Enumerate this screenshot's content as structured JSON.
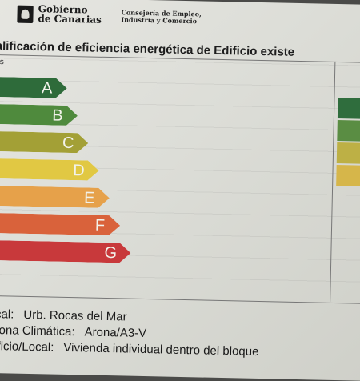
{
  "header": {
    "org_name": "Gobierno\nde Canarias",
    "dept_name": "Consejería de Empleo,\nIndustria y Comercio"
  },
  "title": "alificación de eficiencia energética de Edificio existe",
  "scale_note": "ás",
  "ratings": [
    {
      "letter": "A",
      "color": "#2e6b3a"
    },
    {
      "letter": "B",
      "color": "#4f8a3d"
    },
    {
      "letter": "C",
      "color": "#a3a036"
    },
    {
      "letter": "D",
      "color": "#e1c843"
    },
    {
      "letter": "E",
      "color": "#e6a14a"
    },
    {
      "letter": "F",
      "color": "#d9623b"
    },
    {
      "letter": "G",
      "color": "#c8393b"
    }
  ],
  "right_column": [
    {
      "color": "#2f6d3d"
    },
    {
      "color": "#5a8d43"
    },
    {
      "color": "#bdb045"
    },
    {
      "color": "#d6b64a"
    }
  ],
  "info": [
    {
      "label": "ocal:",
      "value": "Urb. Rocas del Mar"
    },
    {
      "label": "/Zona Climática:",
      "value": "Arona/A3-V"
    },
    {
      "label": "dificio/Local:",
      "value": "Vivienda individual dentro del bloque"
    }
  ]
}
